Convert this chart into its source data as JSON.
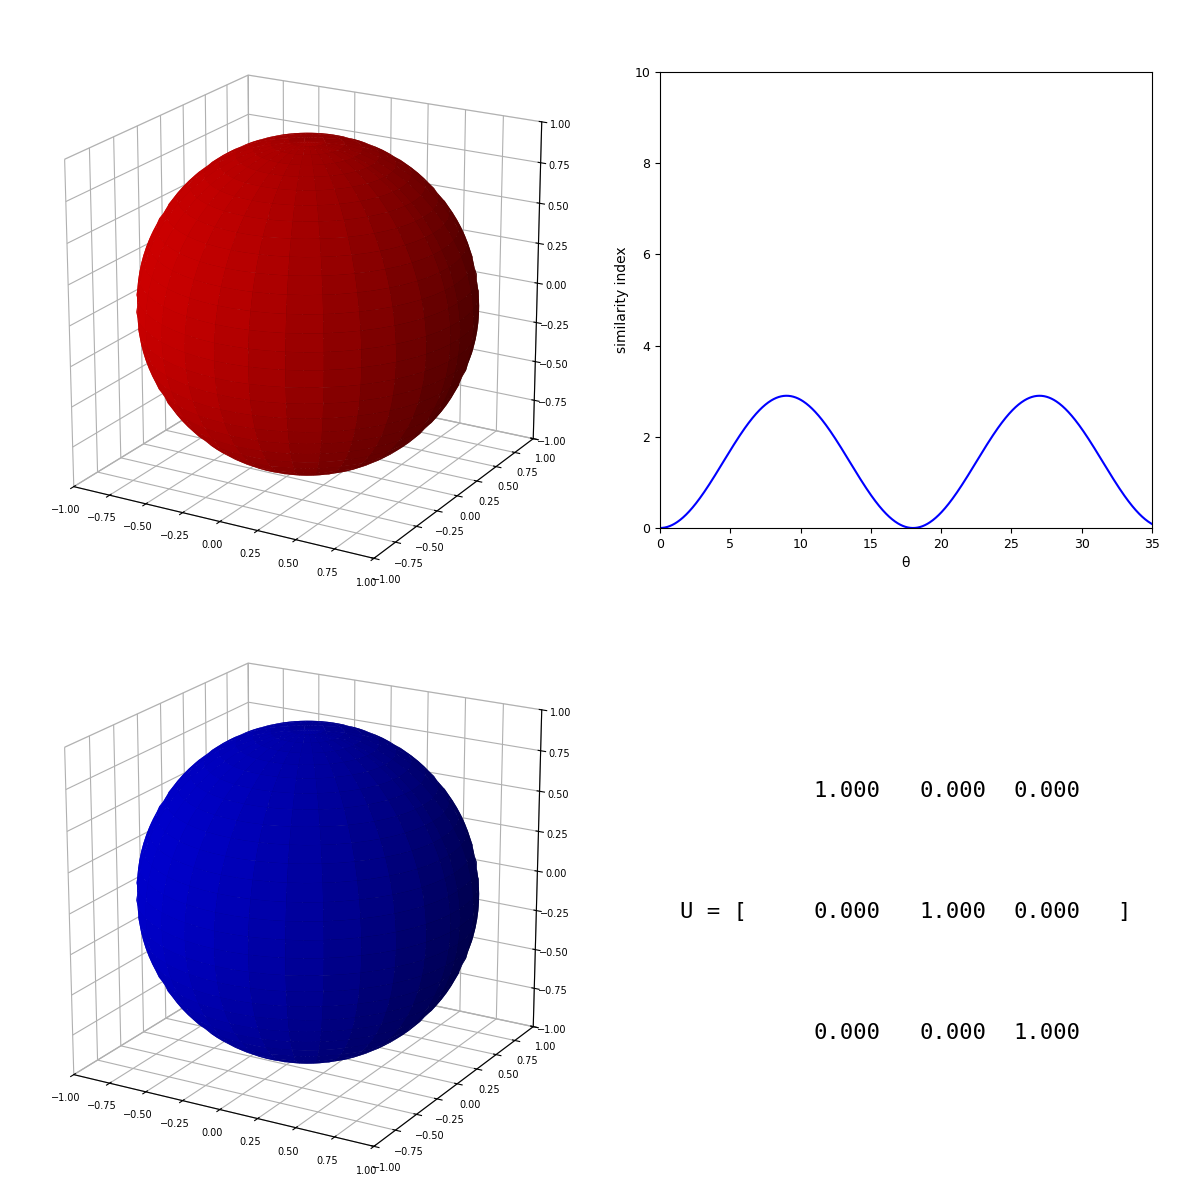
{
  "red_sphere_color": "#cc0000",
  "blue_sphere_color": "#0000cc",
  "plot_line_color": "blue",
  "ylabel": "similarity index",
  "xlabel": "θ",
  "ylim": [
    0,
    10
  ],
  "xlim": [
    0,
    35
  ],
  "matrix": [
    [
      1.0,
      0.0,
      0.0
    ],
    [
      0.0,
      1.0,
      0.0
    ],
    [
      0.0,
      0.0,
      1.0
    ]
  ],
  "sphere_axes_lim": [
    -1,
    1
  ],
  "sphere_ticks": [
    -1.0,
    -0.75,
    -0.5,
    -0.25,
    0.0,
    0.25,
    0.5,
    0.75,
    1.0
  ],
  "peak_amplitude": 2.9,
  "curve_period": 18,
  "elev": 20,
  "azim": -60
}
